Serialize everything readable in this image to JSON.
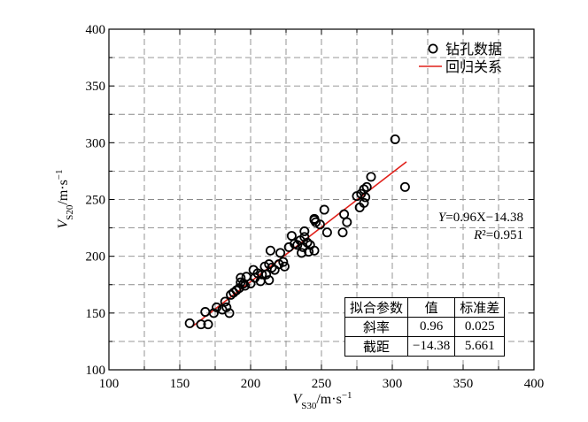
{
  "chart_data": {
    "type": "scatter",
    "xlabel": {
      "base": "V",
      "sub": "S30",
      "unit": "/m·s",
      "exp": "−1"
    },
    "ylabel": {
      "base": "V",
      "sub": "S20",
      "unit": "/m·s",
      "exp": "−1"
    },
    "xlim": [
      100,
      400
    ],
    "ylim": [
      100,
      400
    ],
    "x_ticks": [
      "100",
      "150",
      "200",
      "250",
      "300",
      "350",
      "400"
    ],
    "y_ticks": [
      "100",
      "150",
      "200",
      "250",
      "300",
      "350",
      "400"
    ],
    "grid": "dashed",
    "legend": {
      "position": "top-right",
      "items": [
        {
          "label": "钻孔数据",
          "marker": "open-circle"
        },
        {
          "label": "回归关系",
          "marker": "red-line"
        }
      ]
    },
    "series": [
      {
        "name": "钻孔数据",
        "points": [
          [
            157,
            141
          ],
          [
            165,
            140
          ],
          [
            168,
            151
          ],
          [
            170,
            140
          ],
          [
            174,
            150
          ],
          [
            176,
            155
          ],
          [
            180,
            153
          ],
          [
            182,
            160
          ],
          [
            183,
            155
          ],
          [
            185,
            150
          ],
          [
            186,
            166
          ],
          [
            188,
            168
          ],
          [
            190,
            170
          ],
          [
            192,
            172
          ],
          [
            193,
            177
          ],
          [
            193,
            181
          ],
          [
            195,
            176
          ],
          [
            196,
            174
          ],
          [
            197,
            182
          ],
          [
            200,
            176
          ],
          [
            202,
            188
          ],
          [
            203,
            181
          ],
          [
            205,
            185
          ],
          [
            207,
            178
          ],
          [
            208,
            184
          ],
          [
            210,
            191
          ],
          [
            211,
            184
          ],
          [
            213,
            193
          ],
          [
            213,
            179
          ],
          [
            214,
            205
          ],
          [
            215,
            190
          ],
          [
            217,
            188
          ],
          [
            220,
            193
          ],
          [
            221,
            203
          ],
          [
            223,
            195
          ],
          [
            224,
            191
          ],
          [
            227,
            208
          ],
          [
            229,
            218
          ],
          [
            231,
            211
          ],
          [
            233,
            210
          ],
          [
            235,
            214
          ],
          [
            236,
            203
          ],
          [
            237,
            208
          ],
          [
            238,
            217
          ],
          [
            238,
            222
          ],
          [
            240,
            212
          ],
          [
            241,
            204
          ],
          [
            242,
            210
          ],
          [
            245,
            233
          ],
          [
            245,
            232
          ],
          [
            245,
            205
          ],
          [
            246,
            230
          ],
          [
            249,
            228
          ],
          [
            252,
            241
          ],
          [
            254,
            221
          ],
          [
            265,
            221
          ],
          [
            266,
            237
          ],
          [
            268,
            230
          ],
          [
            275,
            253
          ],
          [
            277,
            243
          ],
          [
            278,
            255
          ],
          [
            280,
            259
          ],
          [
            280,
            247
          ],
          [
            281,
            252
          ],
          [
            282,
            261
          ],
          [
            285,
            270
          ],
          [
            302,
            303
          ],
          [
            309,
            261
          ]
        ]
      },
      {
        "name": "回归关系",
        "line": {
          "slope": 0.96,
          "intercept": -14.38,
          "x_range": [
            158,
            310
          ]
        },
        "color": "#e0201a"
      }
    ],
    "annotations": {
      "equation": "Y=0.96X−14.38",
      "r2": "R²=0.951"
    }
  },
  "fit_table": {
    "headers": [
      "拟合参数",
      "值",
      "标准差"
    ],
    "rows": [
      [
        "斜率",
        "0.96",
        "0.025"
      ],
      [
        "截距",
        "−14.38",
        "5.661"
      ]
    ]
  }
}
